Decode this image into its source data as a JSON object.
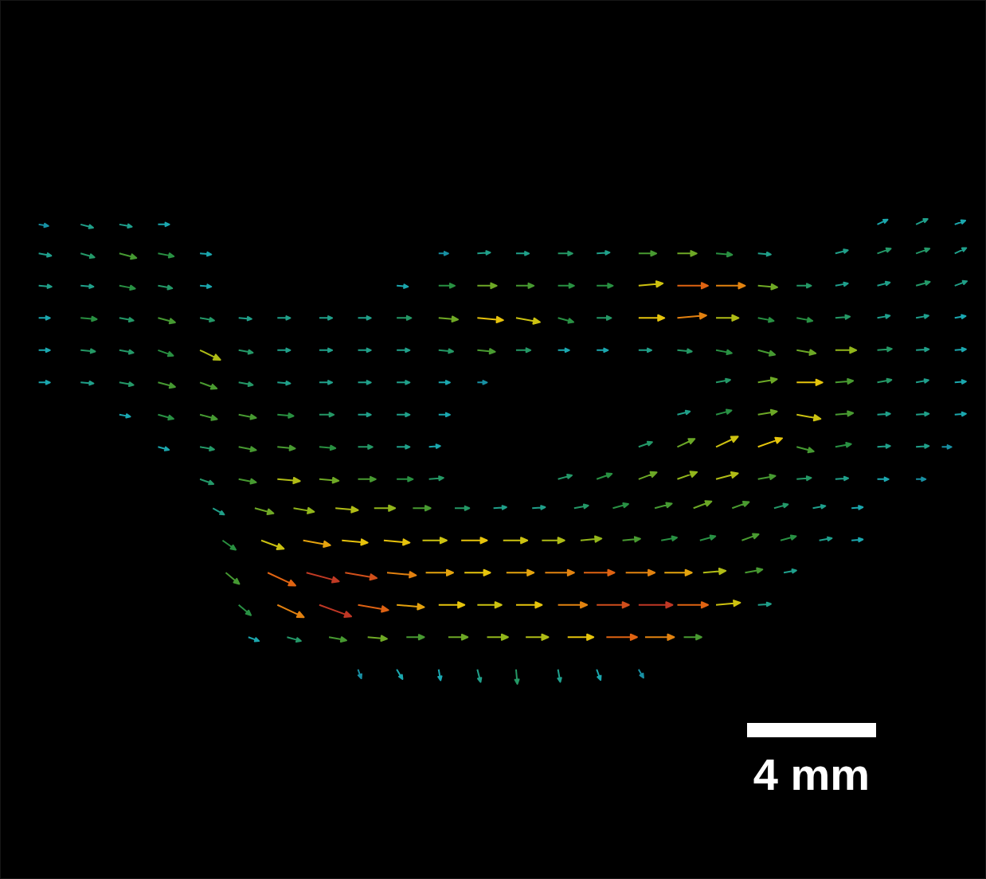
{
  "chart_data": {
    "type": "quiver",
    "xlim": [
      0,
      30.57
    ],
    "ylim": [
      0,
      27.26
    ],
    "tick_labels": false,
    "color_range": [
      0.15,
      1.1
    ],
    "rows": [
      {
        "y": 20.3,
        "x": [
          1.2,
          2.5,
          3.7,
          4.9,
          27.2,
          28.4,
          29.6
        ],
        "u": [
          0.3,
          0.39,
          0.39,
          0.35,
          0.32,
          0.36,
          0.33
        ],
        "v": [
          -0.05,
          -0.1,
          -0.07,
          0,
          0.15,
          0.17,
          0.12
        ]
      },
      {
        "y": 19.4,
        "x": [
          1.2,
          2.5,
          3.7,
          4.9,
          6.2,
          13.6,
          14.8,
          16.0,
          17.3,
          18.5,
          19.8,
          21.0,
          22.2,
          23.5,
          25.9,
          27.2,
          28.4,
          29.6
        ],
        "u": [
          0.39,
          0.43,
          0.53,
          0.49,
          0.35,
          0.3,
          0.4,
          0.4,
          0.45,
          0.4,
          0.55,
          0.6,
          0.5,
          0.4,
          0.39,
          0.42,
          0.42,
          0.36
        ],
        "v": [
          -0.07,
          -0.12,
          -0.14,
          -0.09,
          -0.03,
          0,
          0.03,
          0,
          0,
          0.03,
          0,
          0,
          -0.04,
          -0.03,
          0.1,
          0.15,
          0.15,
          0.17
        ]
      },
      {
        "y": 18.4,
        "x": [
          1.2,
          2.5,
          3.7,
          4.9,
          6.2,
          12.3,
          13.6,
          14.8,
          16.0,
          17.3,
          18.5,
          19.8,
          21.0,
          22.2,
          23.5,
          24.7,
          25.9,
          27.2,
          28.4,
          29.6
        ],
        "u": [
          0.4,
          0.4,
          0.49,
          0.44,
          0.35,
          0.35,
          0.5,
          0.6,
          0.55,
          0.5,
          0.5,
          0.75,
          0.95,
          0.9,
          0.6,
          0.45,
          0.39,
          0.39,
          0.43,
          0.38
        ],
        "v": [
          -0.03,
          -0.03,
          -0.09,
          -0.08,
          -0.03,
          -0.03,
          0,
          0,
          0,
          0,
          0,
          0.07,
          0,
          0,
          -0.05,
          0,
          0.07,
          0.1,
          0.12,
          0.14
        ]
      },
      {
        "y": 17.4,
        "x": [
          1.2,
          2.5,
          3.7,
          4.9,
          6.2,
          7.4,
          8.6,
          9.9,
          11.1,
          12.3,
          13.6,
          14.8,
          16.0,
          17.3,
          18.5,
          19.8,
          21.0,
          22.2,
          23.5,
          24.7,
          25.9,
          27.2,
          28.4,
          29.6
        ],
        "u": [
          0.35,
          0.5,
          0.44,
          0.53,
          0.44,
          0.4,
          0.4,
          0.4,
          0.4,
          0.45,
          0.6,
          0.8,
          0.74,
          0.48,
          0.45,
          0.8,
          0.9,
          0.7,
          0.49,
          0.49,
          0.45,
          0.39,
          0.39,
          0.34
        ],
        "v": [
          0,
          -0.04,
          -0.08,
          -0.14,
          -0.08,
          -0.03,
          0,
          0,
          0,
          0,
          -0.05,
          -0.07,
          -0.13,
          -0.13,
          0,
          0,
          0.08,
          0,
          -0.09,
          -0.09,
          0.04,
          0.07,
          0.07,
          0.06
        ]
      },
      {
        "y": 16.4,
        "x": [
          1.2,
          2.5,
          3.7,
          4.9,
          6.2,
          7.4,
          8.6,
          9.9,
          11.1,
          12.3,
          13.6,
          14.8,
          16.0,
          17.3,
          18.5,
          19.8,
          21.0,
          22.2,
          23.5,
          24.7,
          25.9,
          27.2,
          28.4,
          29.6
        ],
        "u": [
          0.35,
          0.45,
          0.44,
          0.47,
          0.63,
          0.44,
          0.4,
          0.4,
          0.4,
          0.4,
          0.45,
          0.55,
          0.45,
          0.35,
          0.35,
          0.4,
          0.45,
          0.49,
          0.53,
          0.59,
          0.65,
          0.45,
          0.4,
          0.35
        ],
        "v": [
          0,
          -0.04,
          -0.08,
          -0.17,
          -0.3,
          -0.08,
          0,
          0,
          0,
          0,
          -0.04,
          -0.05,
          0,
          0,
          0,
          0,
          -0.04,
          -0.09,
          -0.14,
          -0.1,
          0,
          0.04,
          0.03,
          0.03
        ]
      },
      {
        "y": 15.4,
        "x": [
          1.2,
          2.5,
          3.7,
          4.9,
          6.2,
          7.4,
          8.6,
          9.9,
          11.1,
          12.3,
          13.6,
          14.8,
          22.2,
          23.5,
          24.7,
          25.9,
          27.2,
          28.4,
          29.6
        ],
        "u": [
          0.35,
          0.4,
          0.44,
          0.53,
          0.52,
          0.44,
          0.4,
          0.4,
          0.4,
          0.4,
          0.35,
          0.3,
          0.44,
          0.59,
          0.8,
          0.55,
          0.44,
          0.39,
          0.35
        ],
        "v": [
          0,
          -0.03,
          -0.08,
          -0.14,
          -0.19,
          -0.08,
          -0.03,
          0,
          0,
          0,
          0,
          0,
          0.08,
          0.1,
          0,
          0.05,
          0.08,
          0.07,
          0.03
        ]
      },
      {
        "y": 14.4,
        "x": [
          3.7,
          4.9,
          6.2,
          7.4,
          8.6,
          9.9,
          11.1,
          12.3,
          13.6,
          21.0,
          22.2,
          23.5,
          24.7,
          25.9,
          27.2,
          28.4,
          29.6
        ],
        "u": [
          0.34,
          0.48,
          0.53,
          0.54,
          0.5,
          0.45,
          0.4,
          0.4,
          0.35,
          0.39,
          0.48,
          0.59,
          0.74,
          0.55,
          0.4,
          0.4,
          0.35
        ],
        "v": [
          -0.06,
          -0.13,
          -0.14,
          -0.1,
          -0.04,
          0,
          0,
          0,
          0,
          0.1,
          0.13,
          0.1,
          -0.13,
          0.05,
          0.03,
          0.03,
          0.03
        ]
      },
      {
        "y": 13.4,
        "x": [
          4.9,
          6.2,
          7.4,
          8.6,
          9.9,
          11.1,
          12.3,
          13.3,
          19.8,
          21.0,
          22.2,
          23.5,
          24.7,
          25.9,
          27.2,
          28.4,
          29.2
        ],
        "u": [
          0.34,
          0.44,
          0.54,
          0.55,
          0.5,
          0.45,
          0.4,
          0.35,
          0.42,
          0.54,
          0.68,
          0.75,
          0.53,
          0.49,
          0.4,
          0.4,
          0.3
        ],
        "v": [
          -0.09,
          -0.08,
          -0.1,
          -0.05,
          -0.04,
          0,
          0,
          0.03,
          0.15,
          0.25,
          0.32,
          0.27,
          -0.14,
          0.09,
          0.03,
          0.03,
          0
        ]
      },
      {
        "y": 12.4,
        "x": [
          6.2,
          7.4,
          8.6,
          9.9,
          11.1,
          12.3,
          13.3,
          17.3,
          18.5,
          19.8,
          21.0,
          22.2,
          23.5,
          24.7,
          25.9,
          27.2,
          28.4
        ],
        "u": [
          0.42,
          0.54,
          0.7,
          0.6,
          0.55,
          0.5,
          0.45,
          0.43,
          0.47,
          0.56,
          0.61,
          0.68,
          0.54,
          0.45,
          0.4,
          0.35,
          0.3
        ],
        "v": [
          -0.15,
          -0.1,
          -0.06,
          -0.05,
          0,
          0,
          0.04,
          0.12,
          0.17,
          0.21,
          0.22,
          0.18,
          0.1,
          0.04,
          0.03,
          0,
          0
        ]
      },
      {
        "y": 11.5,
        "x": [
          6.6,
          7.9,
          9.1,
          10.4,
          11.6,
          12.8,
          14.1,
          15.3,
          16.5,
          17.8,
          19.0,
          20.3,
          21.5,
          22.7,
          24.0,
          25.2,
          26.4
        ],
        "u": [
          0.35,
          0.58,
          0.64,
          0.7,
          0.65,
          0.55,
          0.45,
          0.4,
          0.4,
          0.44,
          0.48,
          0.53,
          0.56,
          0.52,
          0.43,
          0.39,
          0.35
        ],
        "v": [
          -0.2,
          -0.16,
          -0.11,
          -0.06,
          0,
          0,
          0,
          0.03,
          0.03,
          0.08,
          0.13,
          0.14,
          0.21,
          0.19,
          0.12,
          0.07,
          0.03
        ]
      },
      {
        "y": 10.5,
        "x": [
          6.9,
          8.1,
          9.4,
          10.6,
          11.9,
          13.1,
          14.3,
          15.6,
          16.8,
          18.0,
          19.3,
          20.5,
          21.7,
          23.0,
          24.2,
          25.4,
          26.4
        ],
        "u": [
          0.41,
          0.7,
          0.84,
          0.8,
          0.8,
          0.75,
          0.8,
          0.75,
          0.7,
          0.65,
          0.55,
          0.49,
          0.48,
          0.52,
          0.48,
          0.39,
          0.35
        ],
        "v": [
          -0.29,
          -0.26,
          -0.15,
          -0.07,
          -0.07,
          0,
          0,
          0,
          0,
          0.06,
          0.05,
          0.09,
          0.13,
          0.19,
          0.13,
          0.07,
          0.03
        ]
      },
      {
        "y": 9.5,
        "x": [
          7.0,
          8.3,
          9.5,
          10.7,
          12.0,
          13.2,
          14.4,
          15.7,
          16.9,
          18.1,
          19.4,
          20.6,
          21.8,
          23.1,
          24.3
        ],
        "u": [
          0.42,
          0.86,
          1.01,
          0.98,
          0.9,
          0.85,
          0.8,
          0.85,
          0.9,
          0.95,
          0.9,
          0.85,
          0.7,
          0.54,
          0.39
        ],
        "v": [
          -0.35,
          -0.4,
          -0.27,
          -0.17,
          -0.08,
          0,
          0,
          0,
          0,
          0,
          0,
          0,
          0.06,
          0.1,
          0.07
        ]
      },
      {
        "y": 8.5,
        "x": [
          7.4,
          8.6,
          9.9,
          11.1,
          12.3,
          13.6,
          14.8,
          16.0,
          17.3,
          18.5,
          19.8,
          21.0,
          22.2,
          23.5
        ],
        "u": [
          0.38,
          0.82,
          0.99,
          0.94,
          0.85,
          0.8,
          0.75,
          0.8,
          0.9,
          1.0,
          1.05,
          0.95,
          0.75,
          0.4
        ],
        "v": [
          -0.32,
          -0.38,
          -0.36,
          -0.16,
          -0.07,
          0,
          0,
          0,
          0,
          0,
          0,
          0,
          0.07,
          0.03
        ]
      },
      {
        "y": 7.5,
        "x": [
          7.7,
          8.9,
          10.2,
          11.4,
          12.6,
          13.9,
          15.1,
          16.3,
          17.6,
          18.8,
          20.0,
          21.2
        ],
        "u": [
          0.33,
          0.43,
          0.54,
          0.6,
          0.55,
          0.6,
          0.65,
          0.7,
          0.8,
          0.95,
          0.9,
          0.55
        ],
        "v": [
          -0.12,
          -0.12,
          -0.1,
          -0.05,
          0,
          0,
          0,
          0,
          0,
          0,
          0,
          0
        ]
      },
      {
        "y": 6.5,
        "x": [
          11.1,
          12.3,
          13.6,
          14.8,
          16.0,
          17.3,
          18.5,
          19.8
        ],
        "u": [
          0.1,
          0.18,
          0.06,
          0.1,
          0.04,
          0.07,
          0.12,
          0.15
        ],
        "v": [
          -0.28,
          -0.3,
          -0.34,
          -0.39,
          -0.45,
          -0.39,
          -0.33,
          -0.26
        ]
      }
    ],
    "scale_bar": {
      "length": 4,
      "label": "4 mm"
    }
  }
}
